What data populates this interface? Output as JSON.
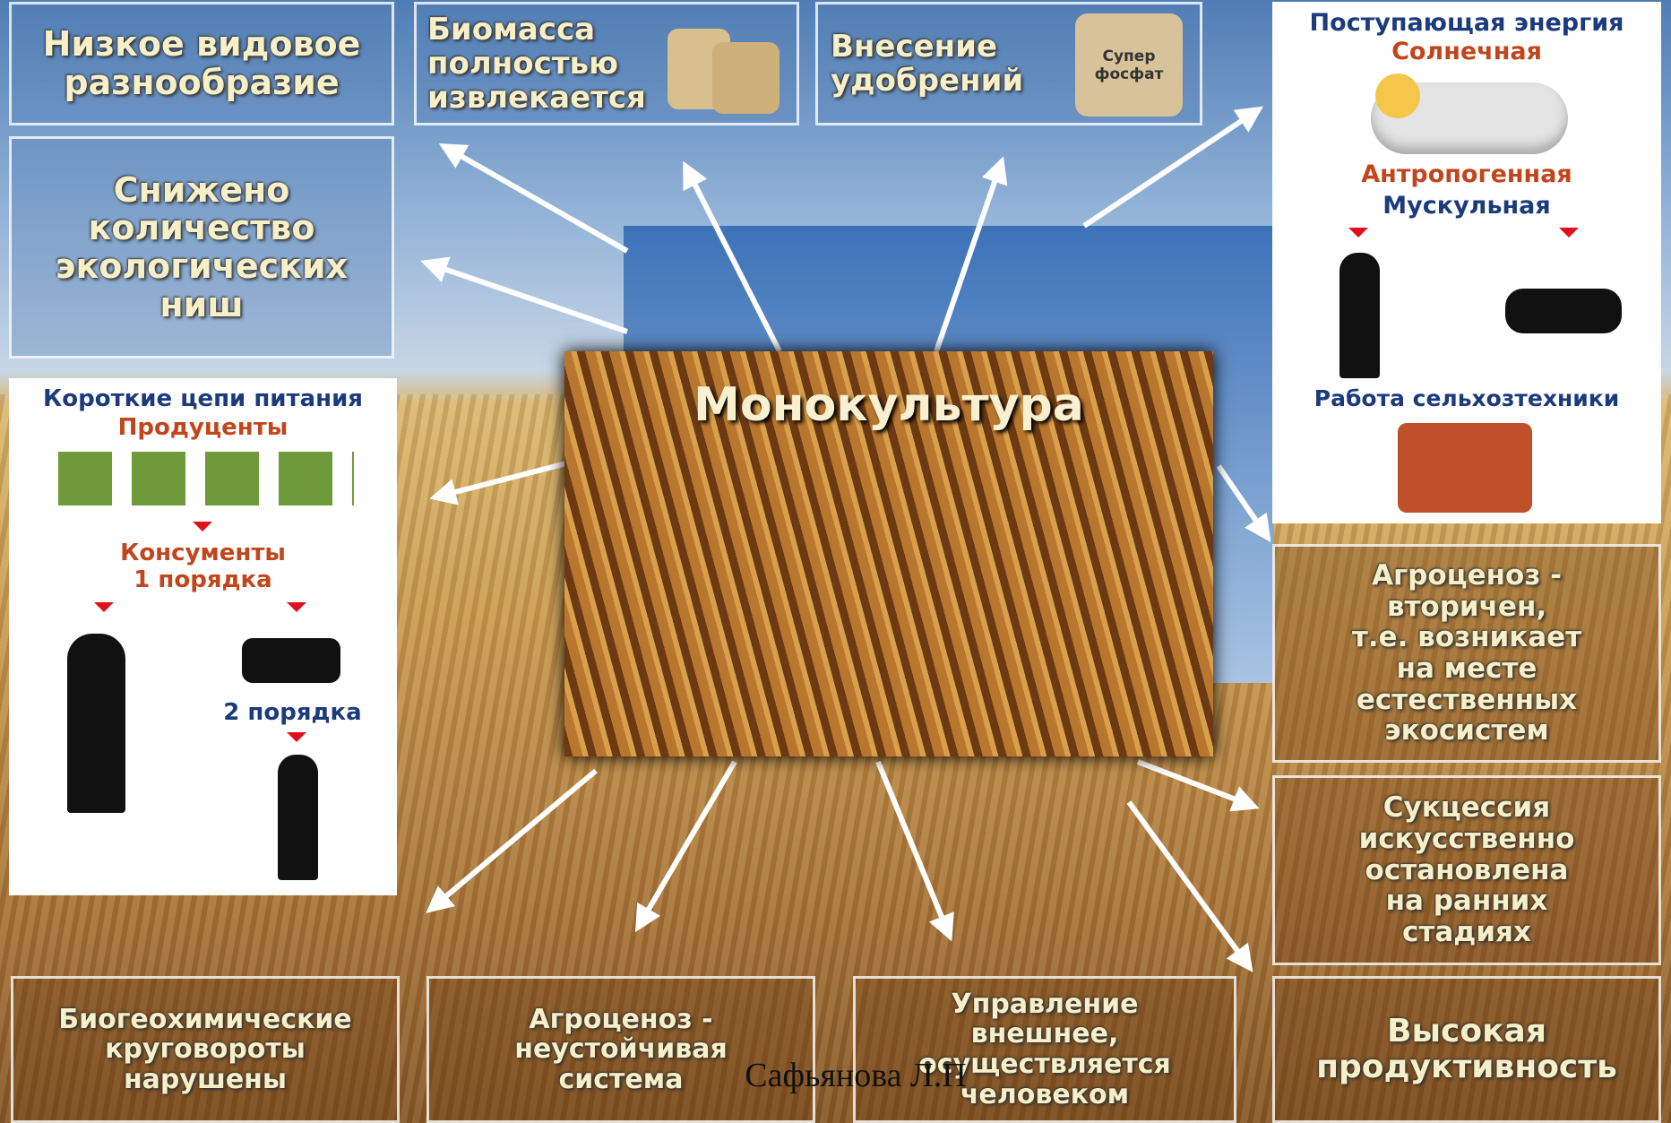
{
  "center_title": "Монокультура",
  "boxes": [
    "Низкое видовое\nразнообразие",
    "Снижено\nколичество\nэкологических\nниш",
    "Биомасса\nполностью\nизвлекается",
    "Внесение\nудобрений",
    "Агроценоз -\nвторичен,\nт.е. возникает\nна месте\nестественных\nэкосистем",
    "Сукцессия\nискусственно\nостановлена\nна ранних\nстадиях",
    "Высокая\nпродуктивность",
    "Биогеохимические\nкруговороты\nнарушены",
    "Агроценоз -\nнеустойчивая\nсистема",
    "Управление\nвнешнее,\nосуществляется\nчеловеком"
  ],
  "bag_label": "Супер\nфосфат",
  "energy": {
    "title": "Поступающая энергия",
    "solar": "Солнечная",
    "anthropogenic": "Антропогенная",
    "muscular": "Мускульная",
    "machinery": "Работа  сельхозтехники"
  },
  "food_chain": {
    "title": "Короткие цепи питания",
    "producers": "Продуценты",
    "consumers_1": "Консументы\n1 порядка",
    "consumers_2": "2 порядка"
  },
  "watermark": "Сафьянова Л.П"
}
